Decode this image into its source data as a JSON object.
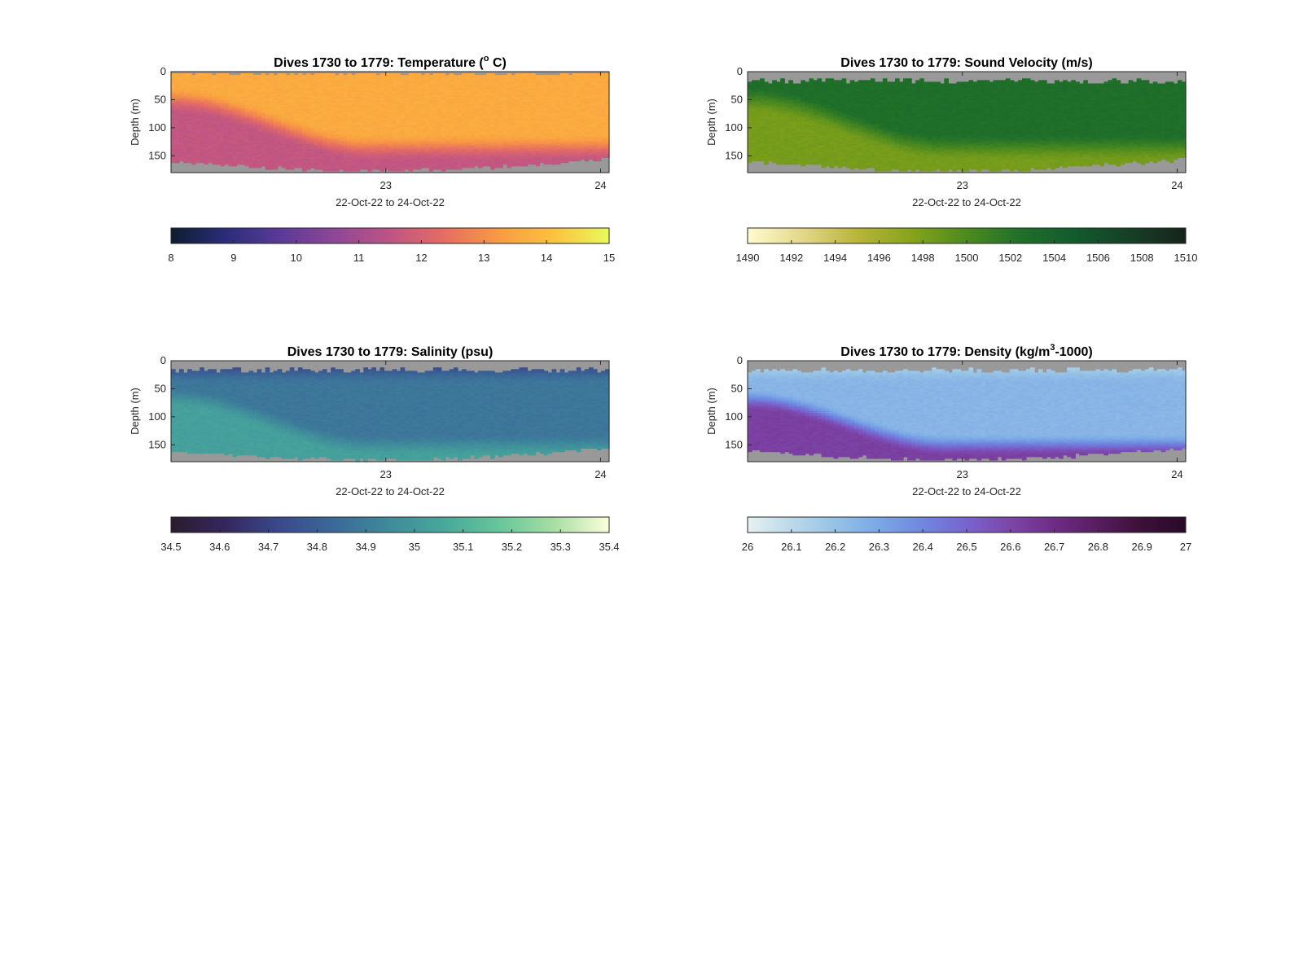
{
  "figure": {
    "background": "#ffffff",
    "missing_color": "#999999"
  },
  "chart_data": [
    {
      "type": "heatmap",
      "title": "Dives 1730 to 1779: Temperature (",
      "title_sup": "o",
      "title_end": " C)",
      "xlabel": "22-Oct-22 to 24-Oct-22",
      "ylabel": "Depth (m)",
      "x_ticks": [
        "23",
        "24"
      ],
      "x_tick_positions": [
        23,
        24
      ],
      "xlim": [
        22.0,
        24.04
      ],
      "ylim": [
        180,
        0
      ],
      "y_ticks": [
        "0",
        "50",
        "100",
        "150"
      ],
      "y_tick_values": [
        0,
        50,
        100,
        150
      ],
      "colorbar": {
        "range": [
          8,
          15
        ],
        "ticks": [
          "8",
          "9",
          "10",
          "11",
          "12",
          "13",
          "14",
          "15"
        ],
        "colors": [
          "#0d1e2f",
          "#2b2d7a",
          "#5b3a97",
          "#8e4896",
          "#be5485",
          "#e66d63",
          "#f99b42",
          "#fbc23f",
          "#e8fa5c"
        ]
      },
      "layers": {
        "surface_value": 13.6,
        "deep_value": 11.6,
        "thermocline_depth_start": 55,
        "thermocline_depth_end": 140,
        "max_depth_range": [
          148,
          178
        ]
      }
    },
    {
      "type": "heatmap",
      "title": "Dives 1730 to 1779: Sound Velocity (m/s)",
      "xlabel": "22-Oct-22 to 24-Oct-22",
      "ylabel": "Depth (m)",
      "x_ticks": [
        "23",
        "24"
      ],
      "x_tick_positions": [
        23,
        24
      ],
      "xlim": [
        22.0,
        24.04
      ],
      "ylim": [
        180,
        0
      ],
      "y_ticks": [
        "0",
        "50",
        "100",
        "150"
      ],
      "y_tick_values": [
        0,
        50,
        100,
        150
      ],
      "colorbar": {
        "range": [
          1490,
          1510
        ],
        "ticks": [
          "1490",
          "1492",
          "1494",
          "1496",
          "1498",
          "1500",
          "1502",
          "1504",
          "1506",
          "1508",
          "1510"
        ],
        "colors": [
          "#fefccf",
          "#e3d78a",
          "#b8b53a",
          "#86a31a",
          "#4d8a1f",
          "#1f6f2a",
          "#135a2c",
          "#163f26",
          "#17231b"
        ]
      },
      "layers": {
        "surface_value": 1502.6,
        "deep_value": 1498.2,
        "thermocline_depth_start": 55,
        "thermocline_depth_end": 140,
        "top_gap_range": [
          12,
          22
        ],
        "max_depth_range": [
          148,
          178
        ]
      }
    },
    {
      "type": "heatmap",
      "title": "Dives 1730 to 1779: Salinity (psu)",
      "xlabel": "22-Oct-22 to 24-Oct-22",
      "ylabel": "Depth (m)",
      "x_ticks": [
        "23",
        "24"
      ],
      "x_tick_positions": [
        23,
        24
      ],
      "xlim": [
        22.0,
        24.04
      ],
      "ylim": [
        180,
        0
      ],
      "y_ticks": [
        "0",
        "50",
        "100",
        "150"
      ],
      "y_tick_values": [
        0,
        50,
        100,
        150
      ],
      "colorbar": {
        "range": [
          34.5,
          35.4
        ],
        "ticks": [
          "34.5",
          "34.6",
          "34.7",
          "34.8",
          "34.9",
          "35",
          "35.1",
          "35.2",
          "35.3",
          "35.4"
        ],
        "colors": [
          "#2a1c2e",
          "#35275e",
          "#3a4a8c",
          "#3b6a98",
          "#3f8b9b",
          "#48a89b",
          "#66c69a",
          "#a8dea4",
          "#fdfddb"
        ]
      },
      "layers": {
        "surface_value": 34.7,
        "mid_value": 34.88,
        "deep_value": 35.03,
        "thermocline_depth_start": 60,
        "thermocline_depth_end": 145,
        "top_gap_range": [
          12,
          22
        ],
        "max_depth_range": [
          148,
          178
        ]
      }
    },
    {
      "type": "heatmap",
      "title": "Dives 1730 to 1779: Density (kg/m",
      "title_sup": "3",
      "title_end": "-1000)",
      "xlabel": "22-Oct-22 to 24-Oct-22",
      "ylabel": "Depth (m)",
      "x_ticks": [
        "23",
        "24"
      ],
      "x_tick_positions": [
        23,
        24
      ],
      "xlim": [
        22.0,
        24.04
      ],
      "ylim": [
        180,
        0
      ],
      "y_ticks": [
        "0",
        "50",
        "100",
        "150"
      ],
      "y_tick_values": [
        0,
        50,
        100,
        150
      ],
      "colorbar": {
        "range": [
          26,
          27
        ],
        "ticks": [
          "26",
          "26.1",
          "26.2",
          "26.3",
          "26.4",
          "26.5",
          "26.6",
          "26.7",
          "26.8",
          "26.9",
          "27"
        ],
        "colors": [
          "#e6f1f1",
          "#bcd9e9",
          "#96c2e6",
          "#7aa7e6",
          "#6f87df",
          "#7864cf",
          "#7d45a8",
          "#6f2c86",
          "#571d5f",
          "#3b1138",
          "#2a0a28"
        ]
      },
      "layers": {
        "surface_value": 26.12,
        "mid_value": 26.25,
        "deep_value": 26.62,
        "thermocline_depth_start": 65,
        "thermocline_depth_end": 145,
        "top_gap_range": [
          12,
          22
        ],
        "max_depth_range": [
          148,
          178
        ]
      }
    }
  ]
}
